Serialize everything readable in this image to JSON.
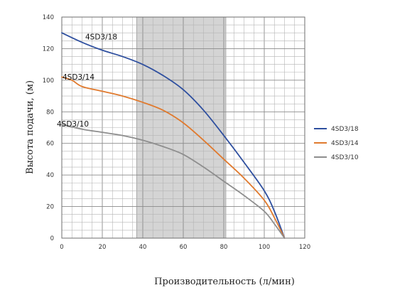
{
  "chart_data": {
    "type": "line",
    "xlabel": "Производительность (л/мин)",
    "ylabel": "Высота подачи, (м)",
    "xlim": [
      0,
      120
    ],
    "ylim": [
      0,
      140
    ],
    "x_ticks": [
      "0",
      "20",
      "40",
      "60",
      "80",
      "100",
      "120"
    ],
    "y_ticks": [
      "0",
      "20",
      "40",
      "60",
      "80",
      "100",
      "120",
      "140"
    ],
    "grid": true,
    "legend_position": "right",
    "highlight_band": {
      "x": [
        37,
        81
      ],
      "color": "#d4d4d4"
    },
    "series": [
      {
        "name": "4SD3/18",
        "label": "4SD3/18",
        "color": "#2e4f9f",
        "x": [
          0,
          10,
          20,
          30,
          40,
          50,
          60,
          70,
          80,
          90,
          100,
          105,
          110
        ],
        "y": [
          130,
          124,
          119,
          115,
          110,
          103,
          94,
          81,
          65,
          48,
          30,
          17,
          0
        ]
      },
      {
        "name": "4SD3/14",
        "label": "4SD3/14",
        "color": "#e07a2e",
        "x": [
          0,
          5,
          10,
          20,
          30,
          40,
          50,
          60,
          70,
          80,
          90,
          100,
          105,
          110
        ],
        "y": [
          102,
          100,
          96,
          93,
          90,
          86,
          81,
          73,
          62,
          50,
          38,
          24,
          13,
          0
        ]
      },
      {
        "name": "4SD3/10",
        "label": "4SD3/10",
        "color": "#8e8e8e",
        "x": [
          0,
          10,
          20,
          30,
          40,
          50,
          60,
          70,
          80,
          90,
          100,
          105,
          110
        ],
        "y": [
          72,
          69,
          67,
          65,
          62,
          58,
          53,
          45,
          36,
          27,
          17,
          9,
          0
        ]
      }
    ]
  }
}
